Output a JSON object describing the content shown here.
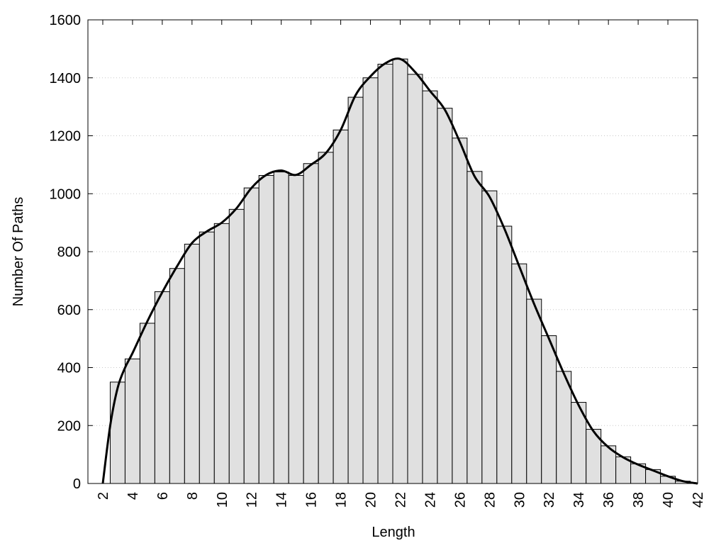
{
  "chart_data": {
    "type": "histogram",
    "xlabel": "Length",
    "ylabel": "Number Of Paths",
    "bins": [
      2.5,
      3.5,
      4.5,
      5.5,
      6.5,
      7.5,
      8.5,
      9.5,
      10.5,
      11.5,
      12.5,
      13.5,
      14.5,
      15.5,
      16.5,
      17.5,
      18.5,
      19.5,
      20.5,
      21.5,
      22.5,
      23.5,
      24.5,
      25.5,
      26.5,
      27.5,
      28.5,
      29.5,
      30.5,
      31.5,
      32.5,
      33.5,
      34.5,
      35.5,
      36.5,
      37.5,
      38.5,
      39.5,
      40.5,
      41.5
    ],
    "values": [
      350,
      430,
      553,
      662,
      742,
      826,
      868,
      897,
      946,
      1020,
      1063,
      1075,
      1063,
      1104,
      1143,
      1220,
      1333,
      1400,
      1447,
      1465,
      1412,
      1355,
      1295,
      1192,
      1077,
      1010,
      888,
      758,
      636,
      510,
      387,
      280,
      187,
      130,
      92,
      68,
      48,
      25,
      8
    ],
    "color": "#e0e0e0",
    "curve": {
      "color": "#000000",
      "x": [
        2,
        2.5,
        3,
        3.5,
        4,
        5,
        6,
        7,
        8,
        9,
        10,
        11,
        12,
        13,
        14,
        15,
        16,
        17,
        18,
        19,
        20,
        21,
        22,
        23,
        24,
        25,
        26,
        27,
        28,
        29,
        30,
        31,
        32,
        33,
        34,
        35,
        36,
        37,
        38,
        39,
        40,
        41,
        42
      ],
      "values": [
        0,
        200,
        330,
        400,
        450,
        560,
        660,
        750,
        830,
        870,
        900,
        950,
        1020,
        1065,
        1080,
        1065,
        1100,
        1140,
        1220,
        1340,
        1405,
        1450,
        1465,
        1420,
        1355,
        1290,
        1180,
        1060,
        990,
        880,
        750,
        620,
        500,
        380,
        270,
        180,
        125,
        90,
        65,
        45,
        25,
        8,
        0
      ]
    },
    "xlim": [
      1,
      42
    ],
    "ylim": [
      0,
      1600
    ],
    "xticks": [
      2,
      4,
      6,
      8,
      10,
      12,
      14,
      16,
      18,
      20,
      22,
      24,
      26,
      28,
      30,
      32,
      34,
      36,
      38,
      40,
      42
    ],
    "yticks": [
      0,
      200,
      400,
      600,
      800,
      1000,
      1200,
      1400,
      1600
    ],
    "grid": true
  }
}
